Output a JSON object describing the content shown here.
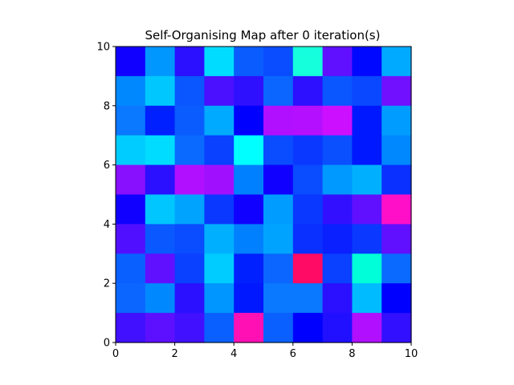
{
  "chart_data": {
    "type": "heatmap",
    "title": "Self-Organising Map after 0 iteration(s)",
    "xlabel": "",
    "ylabel": "",
    "xlim": [
      0,
      10
    ],
    "ylim": [
      0,
      10
    ],
    "xticks": [
      "0",
      "2",
      "4",
      "6",
      "8",
      "10"
    ],
    "yticks": [
      "0",
      "2",
      "4",
      "6",
      "8",
      "10"
    ],
    "grid": false,
    "rows_top_to_bottom": [
      [
        "#1000ff",
        "#0097ff",
        "#2a10ff",
        "#00dcff",
        "#0a5cff",
        "#0a4cff",
        "#16ffdc",
        "#6010ff",
        "#0008ff",
        "#00aaff"
      ],
      [
        "#0088ff",
        "#00c8ff",
        "#0a56ff",
        "#4a10ff",
        "#2e10ff",
        "#0a66ff",
        "#2c10ff",
        "#0a56ff",
        "#0a48ff",
        "#7010ff"
      ],
      [
        "#0a78ff",
        "#0020ff",
        "#0a5cff",
        "#00aaff",
        "#0000ff",
        "#b010ff",
        "#b410ff",
        "#cc10ff",
        "#0018ff",
        "#009cff"
      ],
      [
        "#00ccff",
        "#00dcff",
        "#0a6aff",
        "#0a40ff",
        "#00ffff",
        "#0a4cff",
        "#0a38ff",
        "#0a50ff",
        "#0018ff",
        "#0088ff"
      ],
      [
        "#8810ff",
        "#2a10ff",
        "#b010ff",
        "#a010ff",
        "#0080ff",
        "#1000ff",
        "#0a4cff",
        "#0099ff",
        "#00b0ff",
        "#0a30ff"
      ],
      [
        "#1000ff",
        "#00c6ff",
        "#00a4ff",
        "#0a38ff",
        "#1000ff",
        "#009cff",
        "#0a38ff",
        "#3210ff",
        "#6010ff",
        "#ff10c8"
      ],
      [
        "#5010ff",
        "#0a58ff",
        "#0a4cff",
        "#00b0ff",
        "#0080ff",
        "#00a4ff",
        "#0a30ff",
        "#0a20ff",
        "#0a38ff",
        "#6010ff"
      ],
      [
        "#0a60ff",
        "#6010ff",
        "#0a40ff",
        "#00ccff",
        "#0020ff",
        "#0a66ff",
        "#ff0a64",
        "#0a40ff",
        "#00ffd8",
        "#0a6aff"
      ],
      [
        "#0a66ff",
        "#0088ff",
        "#2a10ff",
        "#0096ff",
        "#0018ff",
        "#0a78ff",
        "#0a78ff",
        "#2a10ff",
        "#00bbff",
        "#0000ff"
      ],
      [
        "#4010ff",
        "#5c10ff",
        "#4010ff",
        "#0a60ff",
        "#ff10b4",
        "#0a60ff",
        "#0000ff",
        "#2010ff",
        "#b010ff",
        "#3210ff"
      ]
    ]
  }
}
